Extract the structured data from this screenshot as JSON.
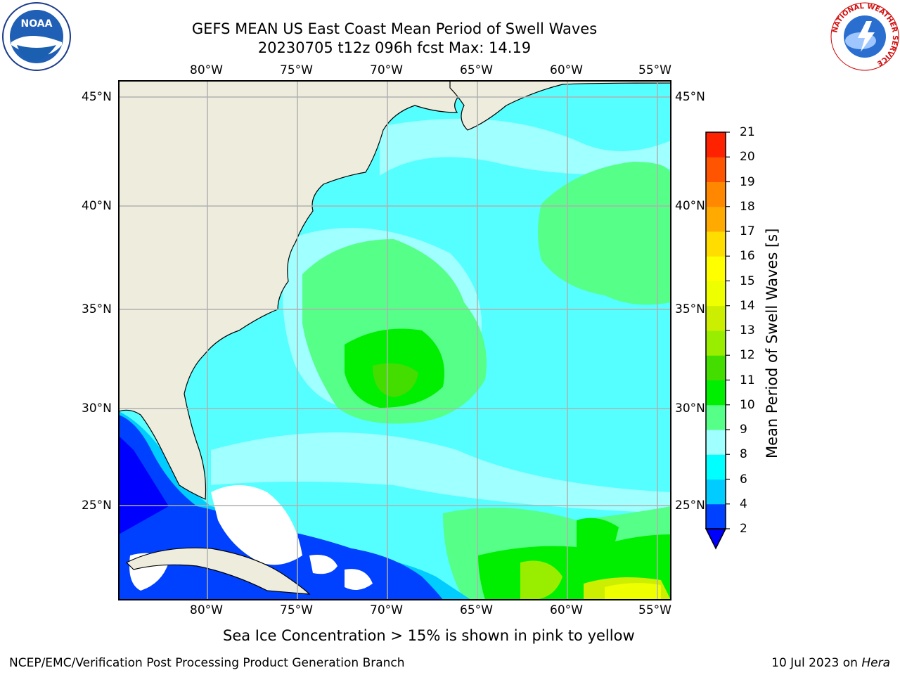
{
  "title": {
    "line1": "GEFS MEAN US East Coast Mean Period of Swell Waves",
    "line2": "20230705 t12z 096h fcst   Max: 14.19"
  },
  "map": {
    "lon_labels": [
      "80°W",
      "75°W",
      "70°W",
      "65°W",
      "60°W",
      "55°W"
    ],
    "lat_labels": [
      "45°N",
      "40°N",
      "35°N",
      "30°N",
      "25°N"
    ],
    "extent": {
      "lon_min": -85,
      "lon_max": -54.2,
      "lat_min": 20.3,
      "lat_max": 45.8
    },
    "grid": true,
    "land_color": "#eeeddd"
  },
  "colorbar": {
    "label": "Mean Period of Swell Waves [s]",
    "ticks": [
      "2",
      "4",
      "6",
      "8",
      "9",
      "10",
      "11",
      "12",
      "13",
      "14",
      "15",
      "16",
      "17",
      "18",
      "19",
      "20",
      "21"
    ],
    "colors": [
      "#0040ff",
      "#00ccff",
      "#00ffff",
      "#a0ffff",
      "#55ff88",
      "#00ee00",
      "#44dd00",
      "#99ee00",
      "#ccee00",
      "#eeff00",
      "#ffff00",
      "#ffdd00",
      "#ffaa00",
      "#ff8800",
      "#ff5500",
      "#ff2200",
      "#ff0000"
    ],
    "under_color": "#0000ff"
  },
  "note": "Sea Ice Concentration > 15% is shown in pink to yellow",
  "footer": {
    "left": "NCEP/EMC/Verification Post Processing Product Generation Branch",
    "right_date": "10 Jul 2023 on ",
    "right_host": "Hera"
  },
  "logos": {
    "noaa": "NOAA",
    "nws_ring": "NATIONAL WEATHER SERVICE"
  }
}
